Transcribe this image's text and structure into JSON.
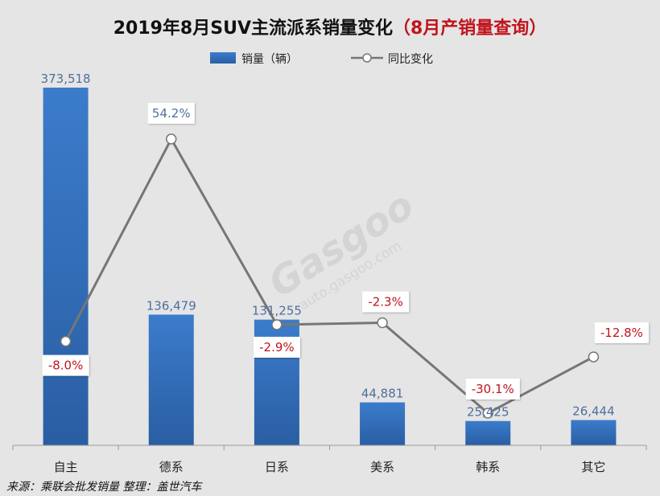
{
  "chart_data": {
    "type": "bar",
    "title": "2019年8月SUV主流派系销量变化",
    "subtitle": "（8月产销量查询）",
    "categories": [
      "自主",
      "德系",
      "日系",
      "美系",
      "韩系",
      "其它"
    ],
    "series": [
      {
        "name": "销量（辆）",
        "kind": "bar",
        "values": [
          373518,
          136479,
          131255,
          44881,
          25425,
          26444
        ],
        "value_labels": [
          "373,518",
          "136,479",
          "131,255",
          "44,881",
          "25,425",
          "26,444"
        ]
      },
      {
        "name": "同比变化",
        "kind": "line",
        "values": [
          -8.0,
          54.2,
          -2.9,
          -2.3,
          -30.1,
          -12.8
        ],
        "value_labels": [
          "-8.0%",
          "54.2%",
          "-2.9%",
          "-2.3%",
          "-30.1%",
          "-12.8%"
        ]
      }
    ],
    "bar_axis_range": [
      0,
      373518
    ],
    "line_axis_range": [
      -40,
      70
    ],
    "grid": false,
    "legend_position": "top-center",
    "source_note": "来源：乘联会批发销量  整理：盖世汽车",
    "watermark_text": "auto.gasgoo.com",
    "colors": {
      "bar_top": "#3b7ccb",
      "bar_bottom": "#2a5ea3",
      "line": "#767676",
      "positive_label": "#4f6f9f",
      "negative_label": "#c0141c",
      "subtitle": "#c0141c"
    }
  }
}
